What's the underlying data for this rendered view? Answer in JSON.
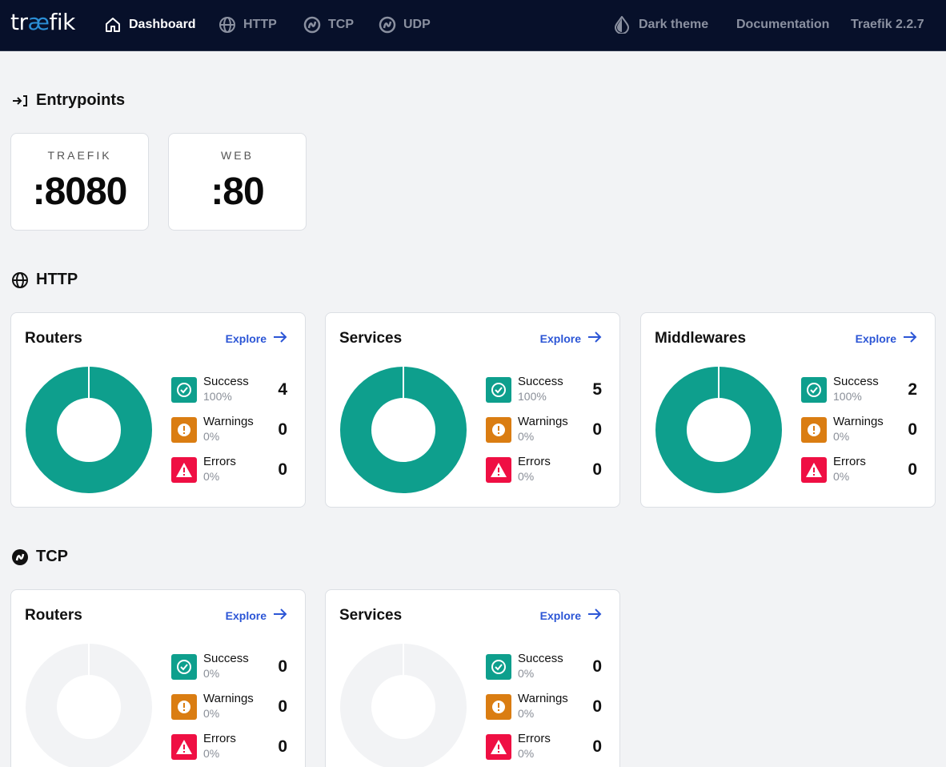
{
  "header": {
    "logo": {
      "part1": "tr",
      "part2": "æ",
      "part3": "fik"
    },
    "nav": [
      {
        "label": "Dashboard",
        "icon": "home-icon",
        "active": true
      },
      {
        "label": "HTTP",
        "icon": "globe-icon",
        "active": false
      },
      {
        "label": "TCP",
        "icon": "tcp-icon",
        "active": false
      },
      {
        "label": "UDP",
        "icon": "udp-icon",
        "active": false
      }
    ],
    "right": {
      "theme_label": "Dark theme",
      "docs_label": "Documentation",
      "version_label": "Traefik 2.2.7"
    }
  },
  "entrypoints": {
    "title": "Entrypoints",
    "items": [
      {
        "name": "TRAEFIK",
        "port": ":8080"
      },
      {
        "name": "WEB",
        "port": ":80"
      }
    ]
  },
  "http": {
    "title": "HTTP",
    "cards": [
      {
        "title": "Routers",
        "explore": "Explore",
        "stats": [
          {
            "label": "Success",
            "percent": "100%",
            "count": "4"
          },
          {
            "label": "Warnings",
            "percent": "0%",
            "count": "0"
          },
          {
            "label": "Errors",
            "percent": "0%",
            "count": "0"
          }
        ]
      },
      {
        "title": "Services",
        "explore": "Explore",
        "stats": [
          {
            "label": "Success",
            "percent": "100%",
            "count": "5"
          },
          {
            "label": "Warnings",
            "percent": "0%",
            "count": "0"
          },
          {
            "label": "Errors",
            "percent": "0%",
            "count": "0"
          }
        ]
      },
      {
        "title": "Middlewares",
        "explore": "Explore",
        "stats": [
          {
            "label": "Success",
            "percent": "100%",
            "count": "2"
          },
          {
            "label": "Warnings",
            "percent": "0%",
            "count": "0"
          },
          {
            "label": "Errors",
            "percent": "0%",
            "count": "0"
          }
        ]
      }
    ]
  },
  "tcp": {
    "title": "TCP",
    "cards": [
      {
        "title": "Routers",
        "explore": "Explore",
        "stats": [
          {
            "label": "Success",
            "percent": "0%",
            "count": "0"
          },
          {
            "label": "Warnings",
            "percent": "0%",
            "count": "0"
          },
          {
            "label": "Errors",
            "percent": "0%",
            "count": "0"
          }
        ]
      },
      {
        "title": "Services",
        "explore": "Explore",
        "stats": [
          {
            "label": "Success",
            "percent": "0%",
            "count": "0"
          },
          {
            "label": "Warnings",
            "percent": "0%",
            "count": "0"
          },
          {
            "label": "Errors",
            "percent": "0%",
            "count": "0"
          }
        ]
      }
    ]
  },
  "colors": {
    "header_bg": "#07102a",
    "success": "#0e9f8d",
    "warning": "#da7d12",
    "error": "#ef0f43",
    "link": "#2c56d6",
    "empty_donut": "#f2f3f5"
  }
}
